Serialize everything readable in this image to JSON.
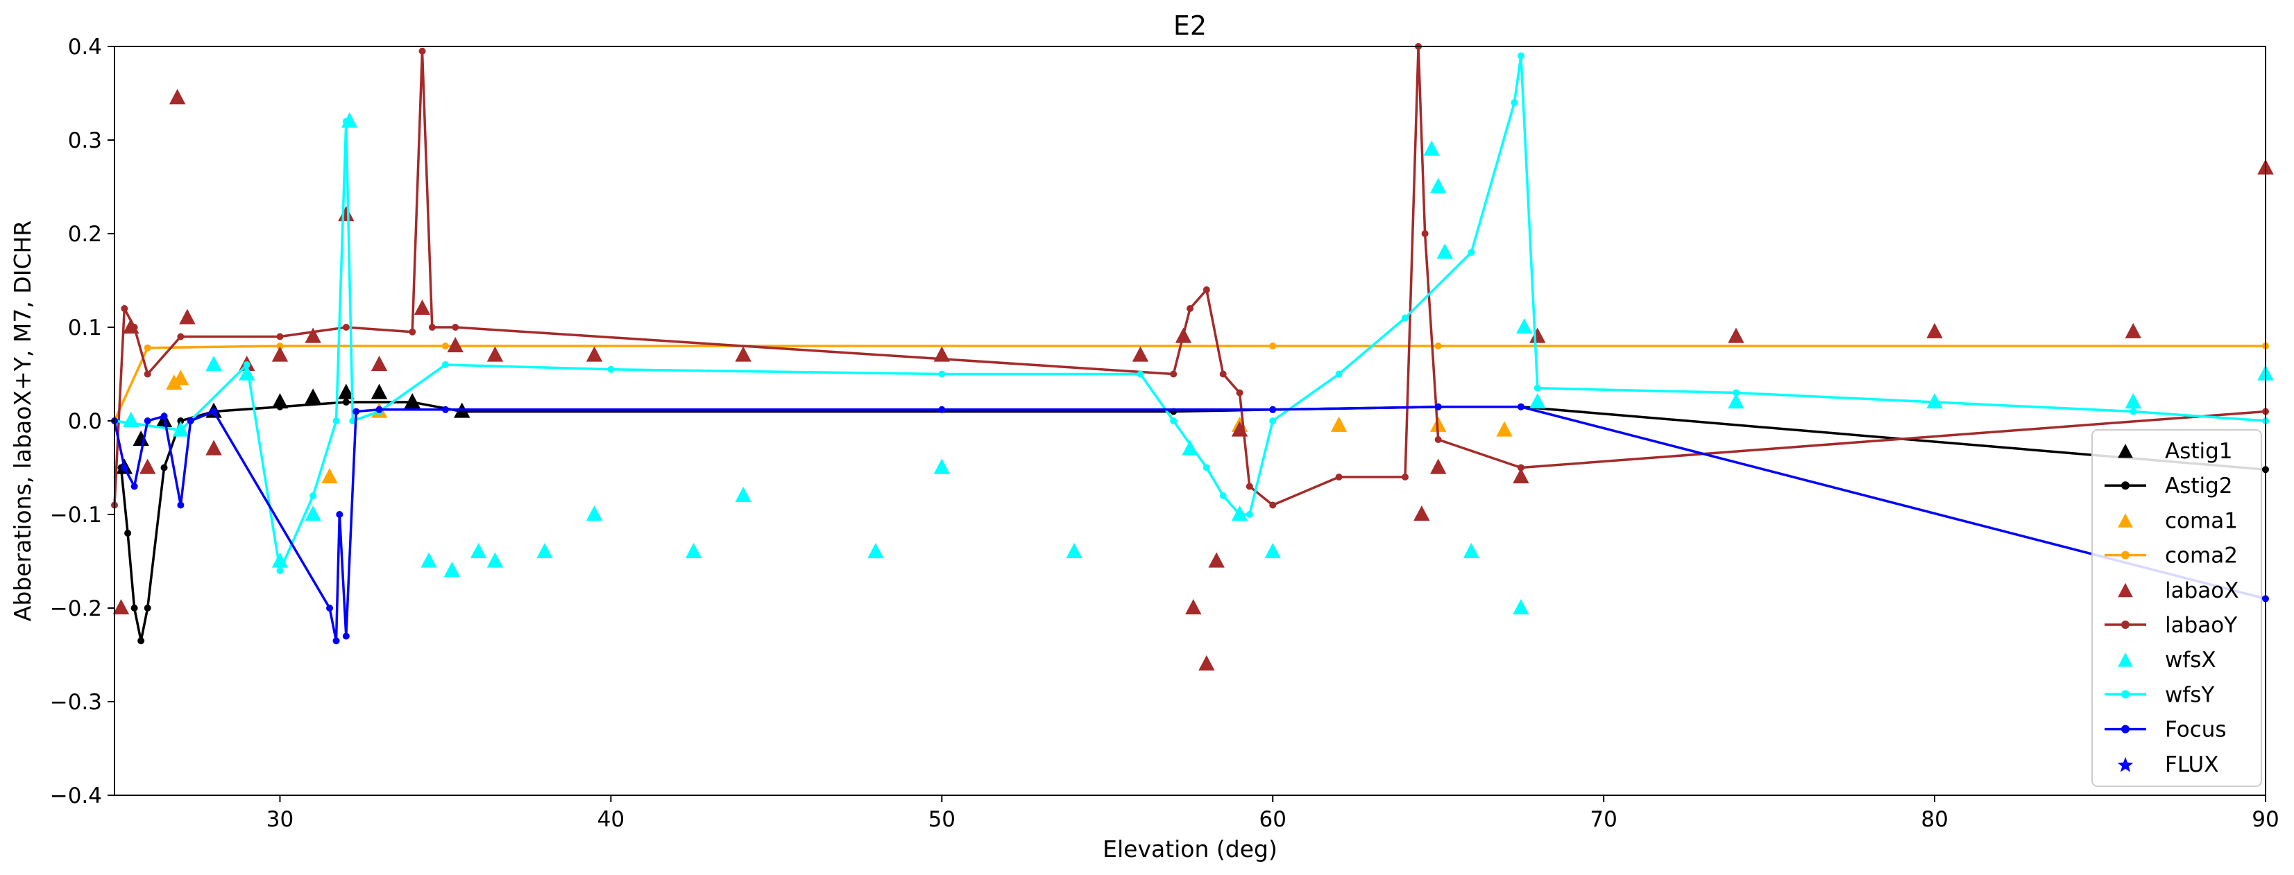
{
  "chart_data": {
    "type": "line",
    "title": "E2",
    "xlabel": "Elevation (deg)",
    "ylabel": "Abberations, labaoX+Y, M7, DICHR",
    "xlim": [
      25,
      90
    ],
    "ylim": [
      -0.4,
      0.4
    ],
    "xticks": [
      "30",
      "40",
      "50",
      "60",
      "70",
      "80",
      "90"
    ],
    "yticks": [
      "0.4",
      "0.3",
      "0.2",
      "0.1",
      "0.0",
      "−0.1",
      "−0.2",
      "−0.3",
      "−0.4"
    ],
    "legend_position": "lower-right",
    "grid": false,
    "series": [
      {
        "name": "Astig1",
        "color": "#000000",
        "style": "markers",
        "marker": "triangle",
        "x": [
          25.3,
          25.8,
          26.5,
          28,
          30,
          31,
          32,
          33,
          34,
          35.5
        ],
        "y": [
          -0.05,
          -0.02,
          0.0,
          0.01,
          0.02,
          0.025,
          0.03,
          0.03,
          0.02,
          0.01
        ]
      },
      {
        "name": "Astig2",
        "color": "#000000",
        "style": "line-dot",
        "marker": "dot",
        "x": [
          25.2,
          25.4,
          25.6,
          25.8,
          26,
          26.5,
          27,
          28,
          30,
          32,
          34,
          35.5,
          57,
          60,
          65,
          67.5,
          90
        ],
        "y": [
          -0.05,
          -0.12,
          -0.2,
          -0.235,
          -0.2,
          -0.05,
          0.0,
          0.01,
          0.015,
          0.02,
          0.02,
          0.01,
          0.01,
          0.012,
          0.015,
          0.015,
          -0.052
        ]
      },
      {
        "name": "coma1",
        "color": "#ffa500",
        "style": "markers",
        "marker": "triangle",
        "x": [
          25.5,
          26.8,
          27,
          31.5,
          33,
          59,
          62,
          65,
          67
        ],
        "y": [
          0.0,
          0.04,
          0.045,
          -0.06,
          0.01,
          -0.005,
          -0.005,
          -0.005,
          -0.01
        ]
      },
      {
        "name": "coma2",
        "color": "#ffa500",
        "style": "line-dot",
        "marker": "dot",
        "x": [
          25,
          26,
          30,
          35,
          60,
          65,
          90
        ],
        "y": [
          0.0,
          0.078,
          0.08,
          0.08,
          0.08,
          0.08,
          0.08
        ]
      },
      {
        "name": "labaoX",
        "color": "#a52a2a",
        "style": "markers",
        "marker": "triangle",
        "x": [
          25.2,
          25.5,
          26,
          26.9,
          27.2,
          28,
          29,
          30,
          31,
          32,
          33,
          34.3,
          35.3,
          36.5,
          39.5,
          44,
          50,
          56,
          57.3,
          57.6,
          58,
          58.3,
          59,
          64.5,
          65,
          67.5,
          68,
          74,
          80,
          86,
          90
        ],
        "y": [
          -0.2,
          0.1,
          -0.05,
          0.345,
          0.11,
          -0.03,
          0.06,
          0.07,
          0.09,
          0.22,
          0.06,
          0.12,
          0.08,
          0.07,
          0.07,
          0.07,
          0.07,
          0.07,
          0.09,
          -0.2,
          -0.26,
          -0.15,
          -0.01,
          -0.1,
          -0.05,
          -0.06,
          0.09,
          0.09,
          0.095,
          0.095,
          0.27
        ]
      },
      {
        "name": "labaoY",
        "color": "#a52a2a",
        "style": "line-dot",
        "marker": "dot",
        "x": [
          25,
          25.3,
          25.6,
          26,
          27,
          30,
          32,
          34,
          34.3,
          34.6,
          35.3,
          57,
          57.5,
          58,
          58.5,
          59,
          59.3,
          60,
          62,
          64,
          64.4,
          64.6,
          65,
          67.5,
          90
        ],
        "y": [
          -0.09,
          0.12,
          0.1,
          0.05,
          0.09,
          0.09,
          0.1,
          0.095,
          0.395,
          0.1,
          0.1,
          0.05,
          0.12,
          0.14,
          0.05,
          0.03,
          -0.07,
          -0.09,
          -0.06,
          -0.06,
          0.4,
          0.2,
          -0.02,
          -0.05,
          0.01
        ]
      },
      {
        "name": "wfsX",
        "color": "#00ffff",
        "style": "markers",
        "marker": "triangle",
        "x": [
          25.5,
          27,
          28,
          29,
          30,
          31,
          32.1,
          34.5,
          35.2,
          36,
          36.5,
          38,
          39.5,
          42.5,
          44,
          48,
          50,
          54,
          57.5,
          59,
          60,
          64.8,
          65,
          65.2,
          66,
          67.5,
          67.6,
          68,
          74,
          80,
          86,
          90
        ],
        "y": [
          0.0,
          -0.01,
          0.06,
          0.05,
          -0.15,
          -0.1,
          0.32,
          -0.15,
          -0.16,
          -0.14,
          -0.15,
          -0.14,
          -0.1,
          -0.14,
          -0.08,
          -0.14,
          -0.05,
          -0.14,
          -0.03,
          -0.1,
          -0.14,
          0.29,
          0.25,
          0.18,
          -0.14,
          -0.2,
          0.1,
          0.02,
          0.02,
          0.02,
          0.02,
          0.05
        ]
      },
      {
        "name": "wfsY",
        "color": "#00ffff",
        "style": "line-dot",
        "marker": "dot",
        "x": [
          25,
          27,
          29,
          30,
          31,
          31.7,
          32,
          32.2,
          33,
          35,
          40,
          50,
          56,
          57,
          58,
          58.5,
          59,
          59.3,
          60,
          62,
          64,
          66,
          67.3,
          67.5,
          68,
          74,
          80,
          86,
          90
        ],
        "y": [
          0.0,
          -0.01,
          0.06,
          -0.16,
          -0.08,
          0.0,
          0.32,
          0.0,
          0.01,
          0.06,
          0.055,
          0.05,
          0.05,
          0.0,
          -0.05,
          -0.08,
          -0.1,
          -0.1,
          0.0,
          0.05,
          0.11,
          0.18,
          0.34,
          0.39,
          0.035,
          0.03,
          0.02,
          0.01,
          0.0
        ]
      },
      {
        "name": "Focus",
        "color": "#0000ff",
        "style": "line-dot",
        "marker": "dot",
        "x": [
          25,
          25.3,
          25.6,
          26,
          26.5,
          27,
          27.3,
          28,
          31.5,
          31.7,
          31.8,
          32,
          32.3,
          33,
          35,
          50,
          60,
          65,
          67.5,
          90
        ],
        "y": [
          0.0,
          -0.05,
          -0.07,
          0.0,
          0.005,
          -0.09,
          0.0,
          0.01,
          -0.2,
          -0.235,
          -0.1,
          -0.23,
          0.01,
          0.012,
          0.012,
          0.012,
          0.012,
          0.015,
          0.015,
          -0.19
        ]
      },
      {
        "name": "FLUX",
        "color": "#0000ff",
        "style": "markers",
        "marker": "star",
        "x": [],
        "y": []
      }
    ]
  }
}
